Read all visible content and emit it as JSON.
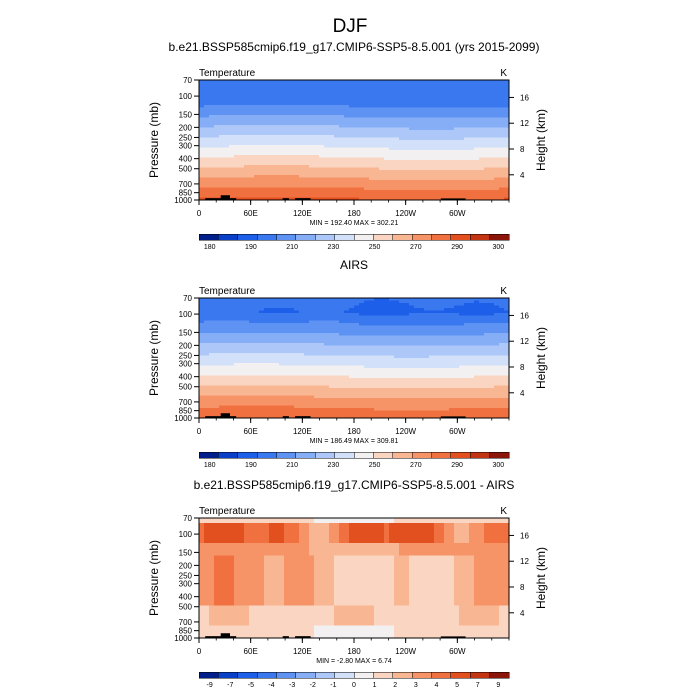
{
  "figure": {
    "title": "DJF"
  },
  "chart_data": [
    {
      "type": "heatmap",
      "title": "b.e21.BSSP585cmip6.f19_g17.CMIP6-SSP5-8.5.001 (yrs 2015-2099)",
      "left_label": "Temperature",
      "right_label": "K",
      "ylabel": "Pressure (mb)",
      "ylabel_right": "Height (km)",
      "y_scale": "log",
      "ylim": [
        1000,
        70
      ],
      "y_ticks": [
        70,
        100,
        150,
        200,
        250,
        300,
        400,
        500,
        700,
        850,
        1000
      ],
      "y_right_ticks": [
        4,
        8,
        12,
        16
      ],
      "x_ticks": [
        "0",
        "60E",
        "120E",
        "180",
        "120W",
        "60W"
      ],
      "stats": "MIN = 192.40  MAX = 302.21",
      "field": "model",
      "colorbar_labels": [
        "180",
        "190",
        "210",
        "230",
        "250",
        "270",
        "290",
        "300"
      ],
      "colors": [
        "#001f8a",
        "#0a3fc7",
        "#1d5fe8",
        "#3a78f0",
        "#5e93f4",
        "#86aef6",
        "#adc8f8",
        "#d3e0f9",
        "#f2f0f0",
        "#fad6c2",
        "#f9b693",
        "#f69468",
        "#f1703f",
        "#e3501f",
        "#c33412",
        "#8a1508"
      ]
    },
    {
      "type": "heatmap",
      "title": "AIRS",
      "left_label": "Temperature",
      "right_label": "K",
      "ylabel": "Pressure (mb)",
      "ylabel_right": "Height (km)",
      "y_scale": "log",
      "ylim": [
        1000,
        70
      ],
      "y_ticks": [
        70,
        100,
        150,
        200,
        250,
        300,
        400,
        500,
        700,
        850,
        1000
      ],
      "y_right_ticks": [
        4,
        8,
        12,
        16
      ],
      "x_ticks": [
        "0",
        "60E",
        "120E",
        "180",
        "120W",
        "60W"
      ],
      "stats": "MIN = 186.49  MAX = 309.81",
      "field": "obs",
      "colorbar_labels": [
        "180",
        "190",
        "210",
        "230",
        "250",
        "270",
        "290",
        "300"
      ],
      "colors": [
        "#001f8a",
        "#0a3fc7",
        "#1d5fe8",
        "#3a78f0",
        "#5e93f4",
        "#86aef6",
        "#adc8f8",
        "#d3e0f9",
        "#f2f0f0",
        "#fad6c2",
        "#f9b693",
        "#f69468",
        "#f1703f",
        "#e3501f",
        "#c33412",
        "#8a1508"
      ]
    },
    {
      "type": "heatmap",
      "title": "b.e21.BSSP585cmip6.f19_g17.CMIP6-SSP5-8.5.001 - AIRS",
      "left_label": "Temperature",
      "right_label": "K",
      "ylabel": "Pressure (mb)",
      "ylabel_right": "Height (km)",
      "y_scale": "log",
      "ylim": [
        1000,
        70
      ],
      "y_ticks": [
        70,
        100,
        150,
        200,
        250,
        300,
        400,
        500,
        700,
        850,
        1000
      ],
      "y_right_ticks": [
        4,
        8,
        12,
        16
      ],
      "x_ticks": [
        "0",
        "60E",
        "120E",
        "180",
        "120W",
        "60W"
      ],
      "stats": "MIN =  -2.80  MAX =   6.74",
      "field": "diff",
      "colorbar_labels": [
        "-9",
        "-7",
        "-5",
        "-4",
        "-3",
        "-2",
        "-1",
        "0",
        "1",
        "2",
        "3",
        "4",
        "5",
        "7",
        "9"
      ],
      "colors": [
        "#001f8a",
        "#0a3fc7",
        "#1d5fe8",
        "#3a78f0",
        "#5e93f4",
        "#86aef6",
        "#adc8f8",
        "#d3e0f9",
        "#f2f0f0",
        "#fad6c2",
        "#f9b693",
        "#f69468",
        "#f1703f",
        "#e3501f",
        "#c33412",
        "#8a1508"
      ]
    }
  ]
}
